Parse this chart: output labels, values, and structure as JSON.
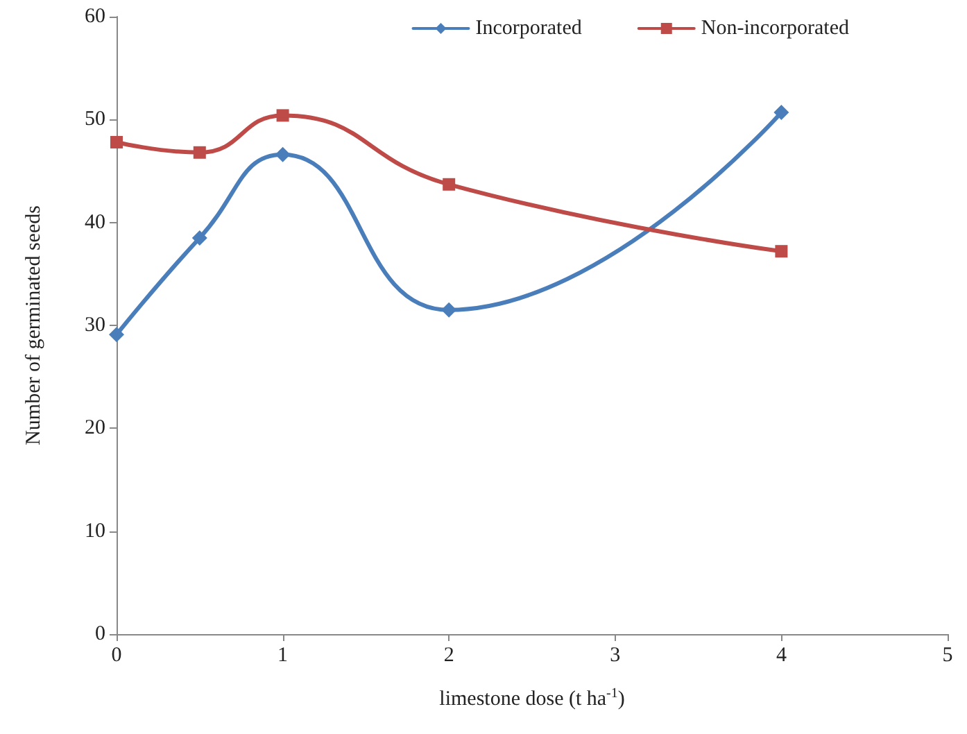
{
  "chart_data": {
    "type": "line",
    "xlabel": "limestone dose (t ha$^{-1}$)",
    "ylabel": "Number of germinated seeds",
    "xlim": [
      0,
      5
    ],
    "xticks": [
      0,
      1,
      2,
      3,
      4,
      5
    ],
    "ylim": [
      0,
      60
    ],
    "yticks": [
      0,
      10,
      20,
      30,
      40,
      50,
      60
    ],
    "grid": false,
    "legend": "top right",
    "line_style": "solid",
    "series": [
      {
        "name": "Incorporated",
        "color": "#4a7ebb",
        "marker": "diamond",
        "x": [
          0,
          0.5,
          1,
          2,
          4
        ],
        "values": [
          29.1,
          38.5,
          46.6,
          31.5,
          50.7
        ]
      },
      {
        "name": "Non-incorporated",
        "color": "#be4b48",
        "marker": "square",
        "x": [
          0,
          0.5,
          1,
          2,
          4
        ],
        "values": [
          47.8,
          46.8,
          50.4,
          43.7,
          37.2
        ]
      }
    ]
  }
}
